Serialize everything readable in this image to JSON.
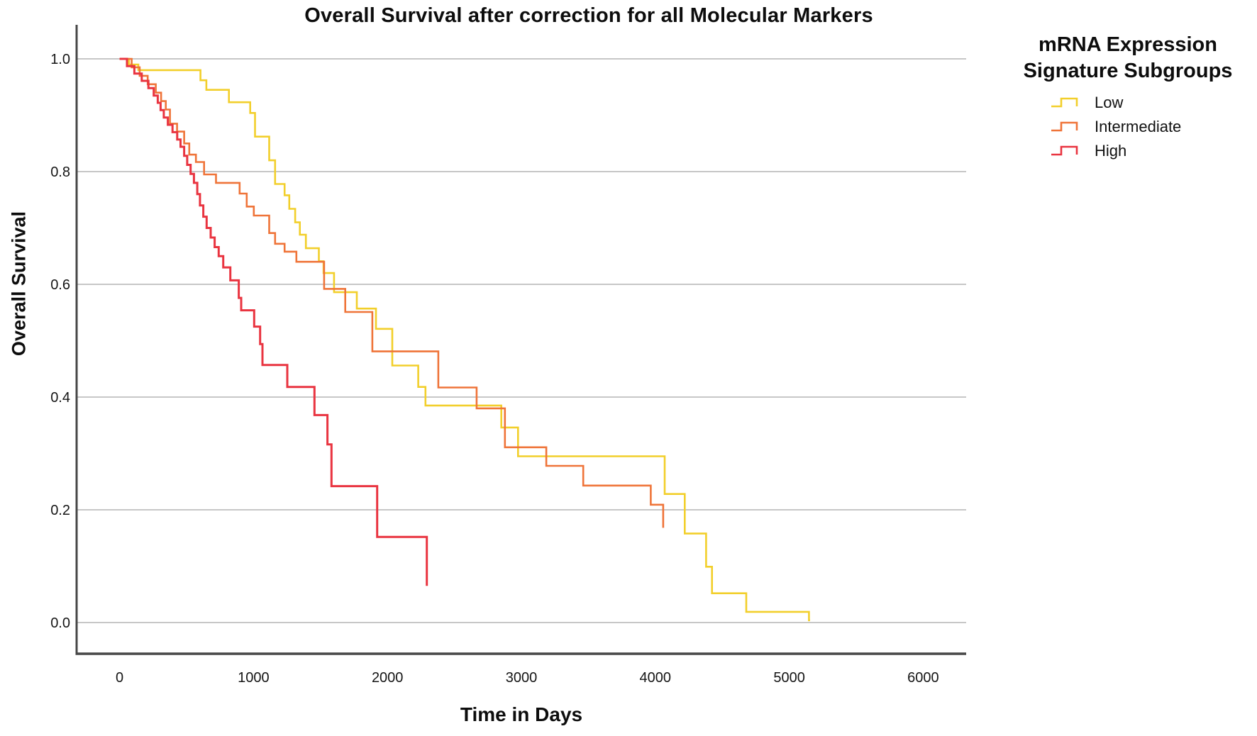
{
  "title": "Overall Survival after correction for all Molecular Markers",
  "axes": {
    "x": {
      "label": "Time in Days",
      "tick_labels": [
        "0",
        "1000",
        "2000",
        "3000",
        "4000",
        "5000",
        "6000"
      ],
      "tick_values": [
        0,
        1000,
        2000,
        3000,
        4000,
        5000,
        6000
      ],
      "range": [
        0,
        6000
      ]
    },
    "y": {
      "label": "Overall Survival",
      "tick_labels": [
        "0.0",
        "0.2",
        "0.4",
        "0.6",
        "0.8",
        "1.0"
      ],
      "tick_values": [
        0.0,
        0.2,
        0.4,
        0.6,
        0.8,
        1.0
      ],
      "range": [
        0,
        1
      ]
    }
  },
  "legend": {
    "title_line1": "mRNA Expression",
    "title_line2": "Signature Subgroups",
    "items": [
      {
        "label": "Low",
        "color": "#F2CF2B"
      },
      {
        "label": "Intermediate",
        "color": "#EF7439"
      },
      {
        "label": "High",
        "color": "#E93440"
      }
    ]
  },
  "colors": {
    "background": "#FFFFFF",
    "grid": "#C7C7C7",
    "axis": "#474747",
    "text": "#0D0D0D",
    "low": "#F2CF2B",
    "intermediate": "#EF7439",
    "high": "#E93440"
  },
  "chart_data": {
    "type": "line",
    "variant": "kaplan-meier-step",
    "title": "Overall Survival after correction for all Molecular Markers",
    "xlabel": "Time in Days",
    "ylabel": "Overall Survival",
    "xlim": [
      0,
      6000
    ],
    "ylim": [
      0.0,
      1.0
    ],
    "grid": "horizontal",
    "legend_position": "right",
    "series": [
      {
        "name": "Low",
        "color": "#F2CF2B",
        "line_width": 2.6,
        "start": [
          0,
          1.0
        ],
        "steps": [
          [
            70,
            0.99
          ],
          [
            140,
            0.98
          ],
          [
            604,
            0.962
          ],
          [
            648,
            0.945
          ],
          [
            816,
            0.923
          ],
          [
            975,
            0.904
          ],
          [
            1011,
            0.862
          ],
          [
            1117,
            0.82
          ],
          [
            1161,
            0.778
          ],
          [
            1232,
            0.758
          ],
          [
            1267,
            0.734
          ],
          [
            1311,
            0.71
          ],
          [
            1346,
            0.688
          ],
          [
            1391,
            0.664
          ],
          [
            1488,
            0.641
          ],
          [
            1523,
            0.62
          ],
          [
            1601,
            0.586
          ],
          [
            1771,
            0.557
          ],
          [
            1914,
            0.521
          ],
          [
            2036,
            0.456
          ],
          [
            2230,
            0.418
          ],
          [
            2284,
            0.385
          ],
          [
            2850,
            0.346
          ],
          [
            2975,
            0.295
          ],
          [
            4070,
            0.228
          ],
          [
            4220,
            0.158
          ],
          [
            4379,
            0.099
          ],
          [
            4423,
            0.052
          ],
          [
            4679,
            0.019
          ],
          [
            5147,
            0.004
          ]
        ],
        "end_time": 5155
      },
      {
        "name": "Intermediate",
        "color": "#EF7439",
        "line_width": 2.6,
        "start": [
          0,
          1.0
        ],
        "steps": [
          [
            90,
            0.985
          ],
          [
            150,
            0.97
          ],
          [
            210,
            0.955
          ],
          [
            270,
            0.94
          ],
          [
            310,
            0.925
          ],
          [
            345,
            0.91
          ],
          [
            376,
            0.885
          ],
          [
            429,
            0.871
          ],
          [
            482,
            0.85
          ],
          [
            520,
            0.83
          ],
          [
            570,
            0.817
          ],
          [
            631,
            0.795
          ],
          [
            720,
            0.78
          ],
          [
            896,
            0.761
          ],
          [
            949,
            0.738
          ],
          [
            1002,
            0.722
          ],
          [
            1117,
            0.691
          ],
          [
            1161,
            0.672
          ],
          [
            1232,
            0.658
          ],
          [
            1320,
            0.64
          ],
          [
            1527,
            0.592
          ],
          [
            1685,
            0.551
          ],
          [
            1887,
            0.481
          ],
          [
            2380,
            0.417
          ],
          [
            2666,
            0.38
          ],
          [
            2877,
            0.311
          ],
          [
            3186,
            0.278
          ],
          [
            3462,
            0.243
          ],
          [
            3966,
            0.209
          ],
          [
            4059,
            0.168
          ]
        ],
        "end_time": 4059
      },
      {
        "name": "High",
        "color": "#E93440",
        "line_width": 3,
        "start": [
          0,
          1.0
        ],
        "steps": [
          [
            55,
            0.987
          ],
          [
            110,
            0.974
          ],
          [
            165,
            0.961
          ],
          [
            215,
            0.948
          ],
          [
            255,
            0.935
          ],
          [
            285,
            0.922
          ],
          [
            306,
            0.909
          ],
          [
            330,
            0.896
          ],
          [
            360,
            0.883
          ],
          [
            395,
            0.87
          ],
          [
            430,
            0.857
          ],
          [
            455,
            0.844
          ],
          [
            482,
            0.828
          ],
          [
            505,
            0.812
          ],
          [
            530,
            0.796
          ],
          [
            555,
            0.78
          ],
          [
            580,
            0.76
          ],
          [
            600,
            0.74
          ],
          [
            625,
            0.72
          ],
          [
            650,
            0.7
          ],
          [
            680,
            0.683
          ],
          [
            710,
            0.666
          ],
          [
            740,
            0.65
          ],
          [
            774,
            0.63
          ],
          [
            827,
            0.607
          ],
          [
            890,
            0.576
          ],
          [
            908,
            0.554
          ],
          [
            1005,
            0.525
          ],
          [
            1049,
            0.494
          ],
          [
            1067,
            0.457
          ],
          [
            1252,
            0.418
          ],
          [
            1455,
            0.368
          ],
          [
            1552,
            0.316
          ],
          [
            1582,
            0.242
          ],
          [
            1923,
            0.152
          ],
          [
            2294,
            0.065
          ]
        ],
        "end_time": 2294
      }
    ]
  }
}
